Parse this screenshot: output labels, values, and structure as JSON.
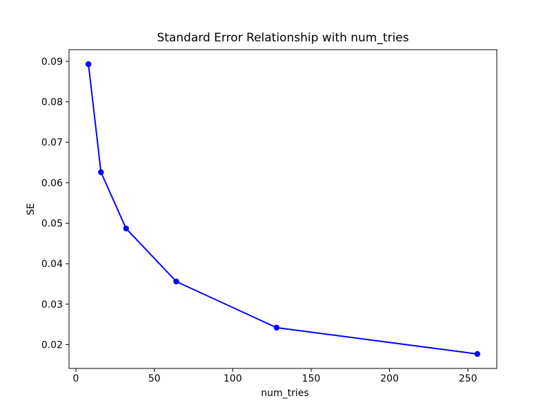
{
  "figure": {
    "background": "#ffffff",
    "text_color": "#000000",
    "spine_color": "#000000"
  },
  "chart_data": {
    "type": "line",
    "title": "Standard Error Relationship with num_tries",
    "xlabel": "num_tries",
    "ylabel": "SE",
    "x": [
      8,
      16,
      32,
      64,
      128,
      256
    ],
    "y": [
      0.0893,
      0.0626,
      0.0487,
      0.0356,
      0.0242,
      0.0177
    ],
    "line_color": "#0000ff",
    "marker": "circle",
    "marker_color": "#0000ff",
    "xticks": [
      0,
      50,
      100,
      150,
      200,
      250
    ],
    "yticks": [
      0.02,
      0.03,
      0.04,
      0.05,
      0.06,
      0.07,
      0.08,
      0.09
    ],
    "ytick_decimals": 2,
    "xlim": [
      -4.4,
      268.4
    ],
    "ylim": [
      0.01412,
      0.09288
    ],
    "grid": false,
    "legend": "none"
  }
}
